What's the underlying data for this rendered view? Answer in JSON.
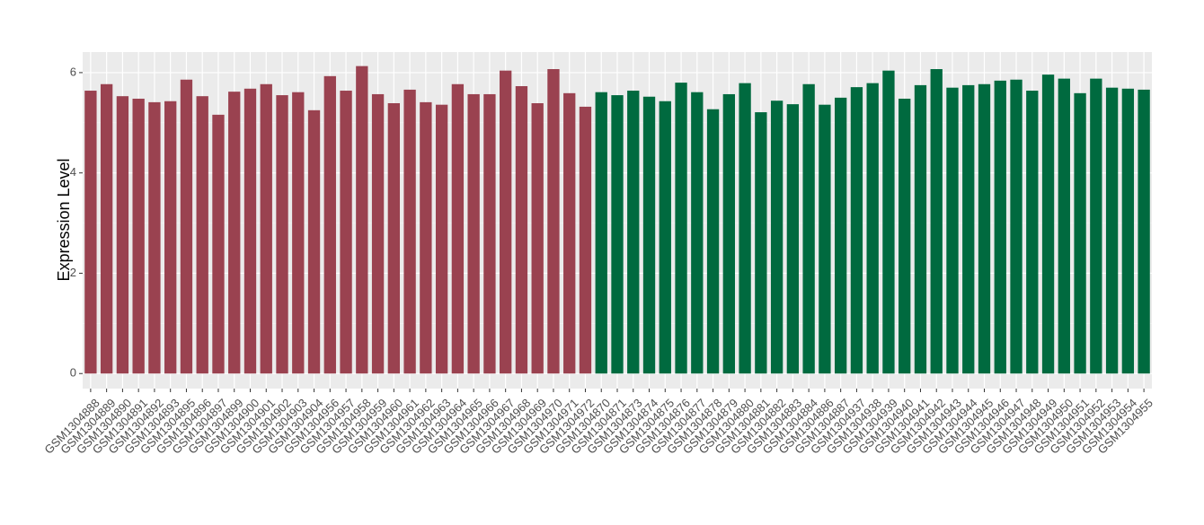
{
  "chart_data": {
    "type": "bar",
    "y_label": "Expression Level",
    "categories": [
      "GSM1304888",
      "GSM1304889",
      "GSM1304890",
      "GSM1304891",
      "GSM1304892",
      "GSM1304893",
      "GSM1304895",
      "GSM1304896",
      "GSM1304897",
      "GSM1304899",
      "GSM1304900",
      "GSM1304901",
      "GSM1304902",
      "GSM1304903",
      "GSM1304904",
      "GSM1304956",
      "GSM1304957",
      "GSM1304958",
      "GSM1304959",
      "GSM1304960",
      "GSM1304961",
      "GSM1304962",
      "GSM1304963",
      "GSM1304964",
      "GSM1304965",
      "GSM1304966",
      "GSM1304967",
      "GSM1304968",
      "GSM1304969",
      "GSM1304970",
      "GSM1304971",
      "GSM1304972",
      "GSM1304870",
      "GSM1304871",
      "GSM1304873",
      "GSM1304874",
      "GSM1304875",
      "GSM1304876",
      "GSM1304877",
      "GSM1304878",
      "GSM1304879",
      "GSM1304880",
      "GSM1304881",
      "GSM1304882",
      "GSM1304883",
      "GSM1304884",
      "GSM1304886",
      "GSM1304887",
      "GSM1304937",
      "GSM1304938",
      "GSM1304939",
      "GSM1304940",
      "GSM1304941",
      "GSM1304942",
      "GSM1304943",
      "GSM1304944",
      "GSM1304945",
      "GSM1304946",
      "GSM1304947",
      "GSM1304948",
      "GSM1304949",
      "GSM1304950",
      "GSM1304951",
      "GSM1304952",
      "GSM1304953",
      "GSM1304954",
      "GSM1304955"
    ],
    "values": [
      5.64,
      5.77,
      5.53,
      5.48,
      5.41,
      5.43,
      5.86,
      5.53,
      5.16,
      5.62,
      5.68,
      5.77,
      5.55,
      5.61,
      5.25,
      5.93,
      5.64,
      6.13,
      5.57,
      5.39,
      5.66,
      5.41,
      5.36,
      5.77,
      5.57,
      5.57,
      6.04,
      5.73,
      5.39,
      6.07,
      5.59,
      5.32,
      5.61,
      5.55,
      5.64,
      5.52,
      5.43,
      5.8,
      5.61,
      5.27,
      5.57,
      5.79,
      5.21,
      5.44,
      5.37,
      5.77,
      5.36,
      5.5,
      5.71,
      5.79,
      6.04,
      5.48,
      5.75,
      6.07,
      5.7,
      5.75,
      5.77,
      5.84,
      5.86,
      5.64,
      5.96,
      5.88,
      5.59,
      5.88,
      5.7,
      5.68,
      5.66
    ],
    "colors": [
      "#9a4250",
      "#9a4250",
      "#9a4250",
      "#9a4250",
      "#9a4250",
      "#9a4250",
      "#9a4250",
      "#9a4250",
      "#9a4250",
      "#9a4250",
      "#9a4250",
      "#9a4250",
      "#9a4250",
      "#9a4250",
      "#9a4250",
      "#9a4250",
      "#9a4250",
      "#9a4250",
      "#9a4250",
      "#9a4250",
      "#9a4250",
      "#9a4250",
      "#9a4250",
      "#9a4250",
      "#9a4250",
      "#9a4250",
      "#9a4250",
      "#9a4250",
      "#9a4250",
      "#9a4250",
      "#9a4250",
      "#9a4250",
      "#006a3f",
      "#006a3f",
      "#006a3f",
      "#006a3f",
      "#006a3f",
      "#006a3f",
      "#006a3f",
      "#006a3f",
      "#006a3f",
      "#006a3f",
      "#006a3f",
      "#006a3f",
      "#006a3f",
      "#006a3f",
      "#006a3f",
      "#006a3f",
      "#006a3f",
      "#006a3f",
      "#006a3f",
      "#006a3f",
      "#006a3f",
      "#006a3f",
      "#006a3f",
      "#006a3f",
      "#006a3f",
      "#006a3f",
      "#006a3f",
      "#006a3f",
      "#006a3f",
      "#006a3f",
      "#006a3f",
      "#006a3f",
      "#006a3f",
      "#006a3f",
      "#006a3f"
    ],
    "ylim": [
      -0.3,
      6.41
    ],
    "yticks": [
      0,
      2,
      4,
      6
    ],
    "grid": true
  }
}
